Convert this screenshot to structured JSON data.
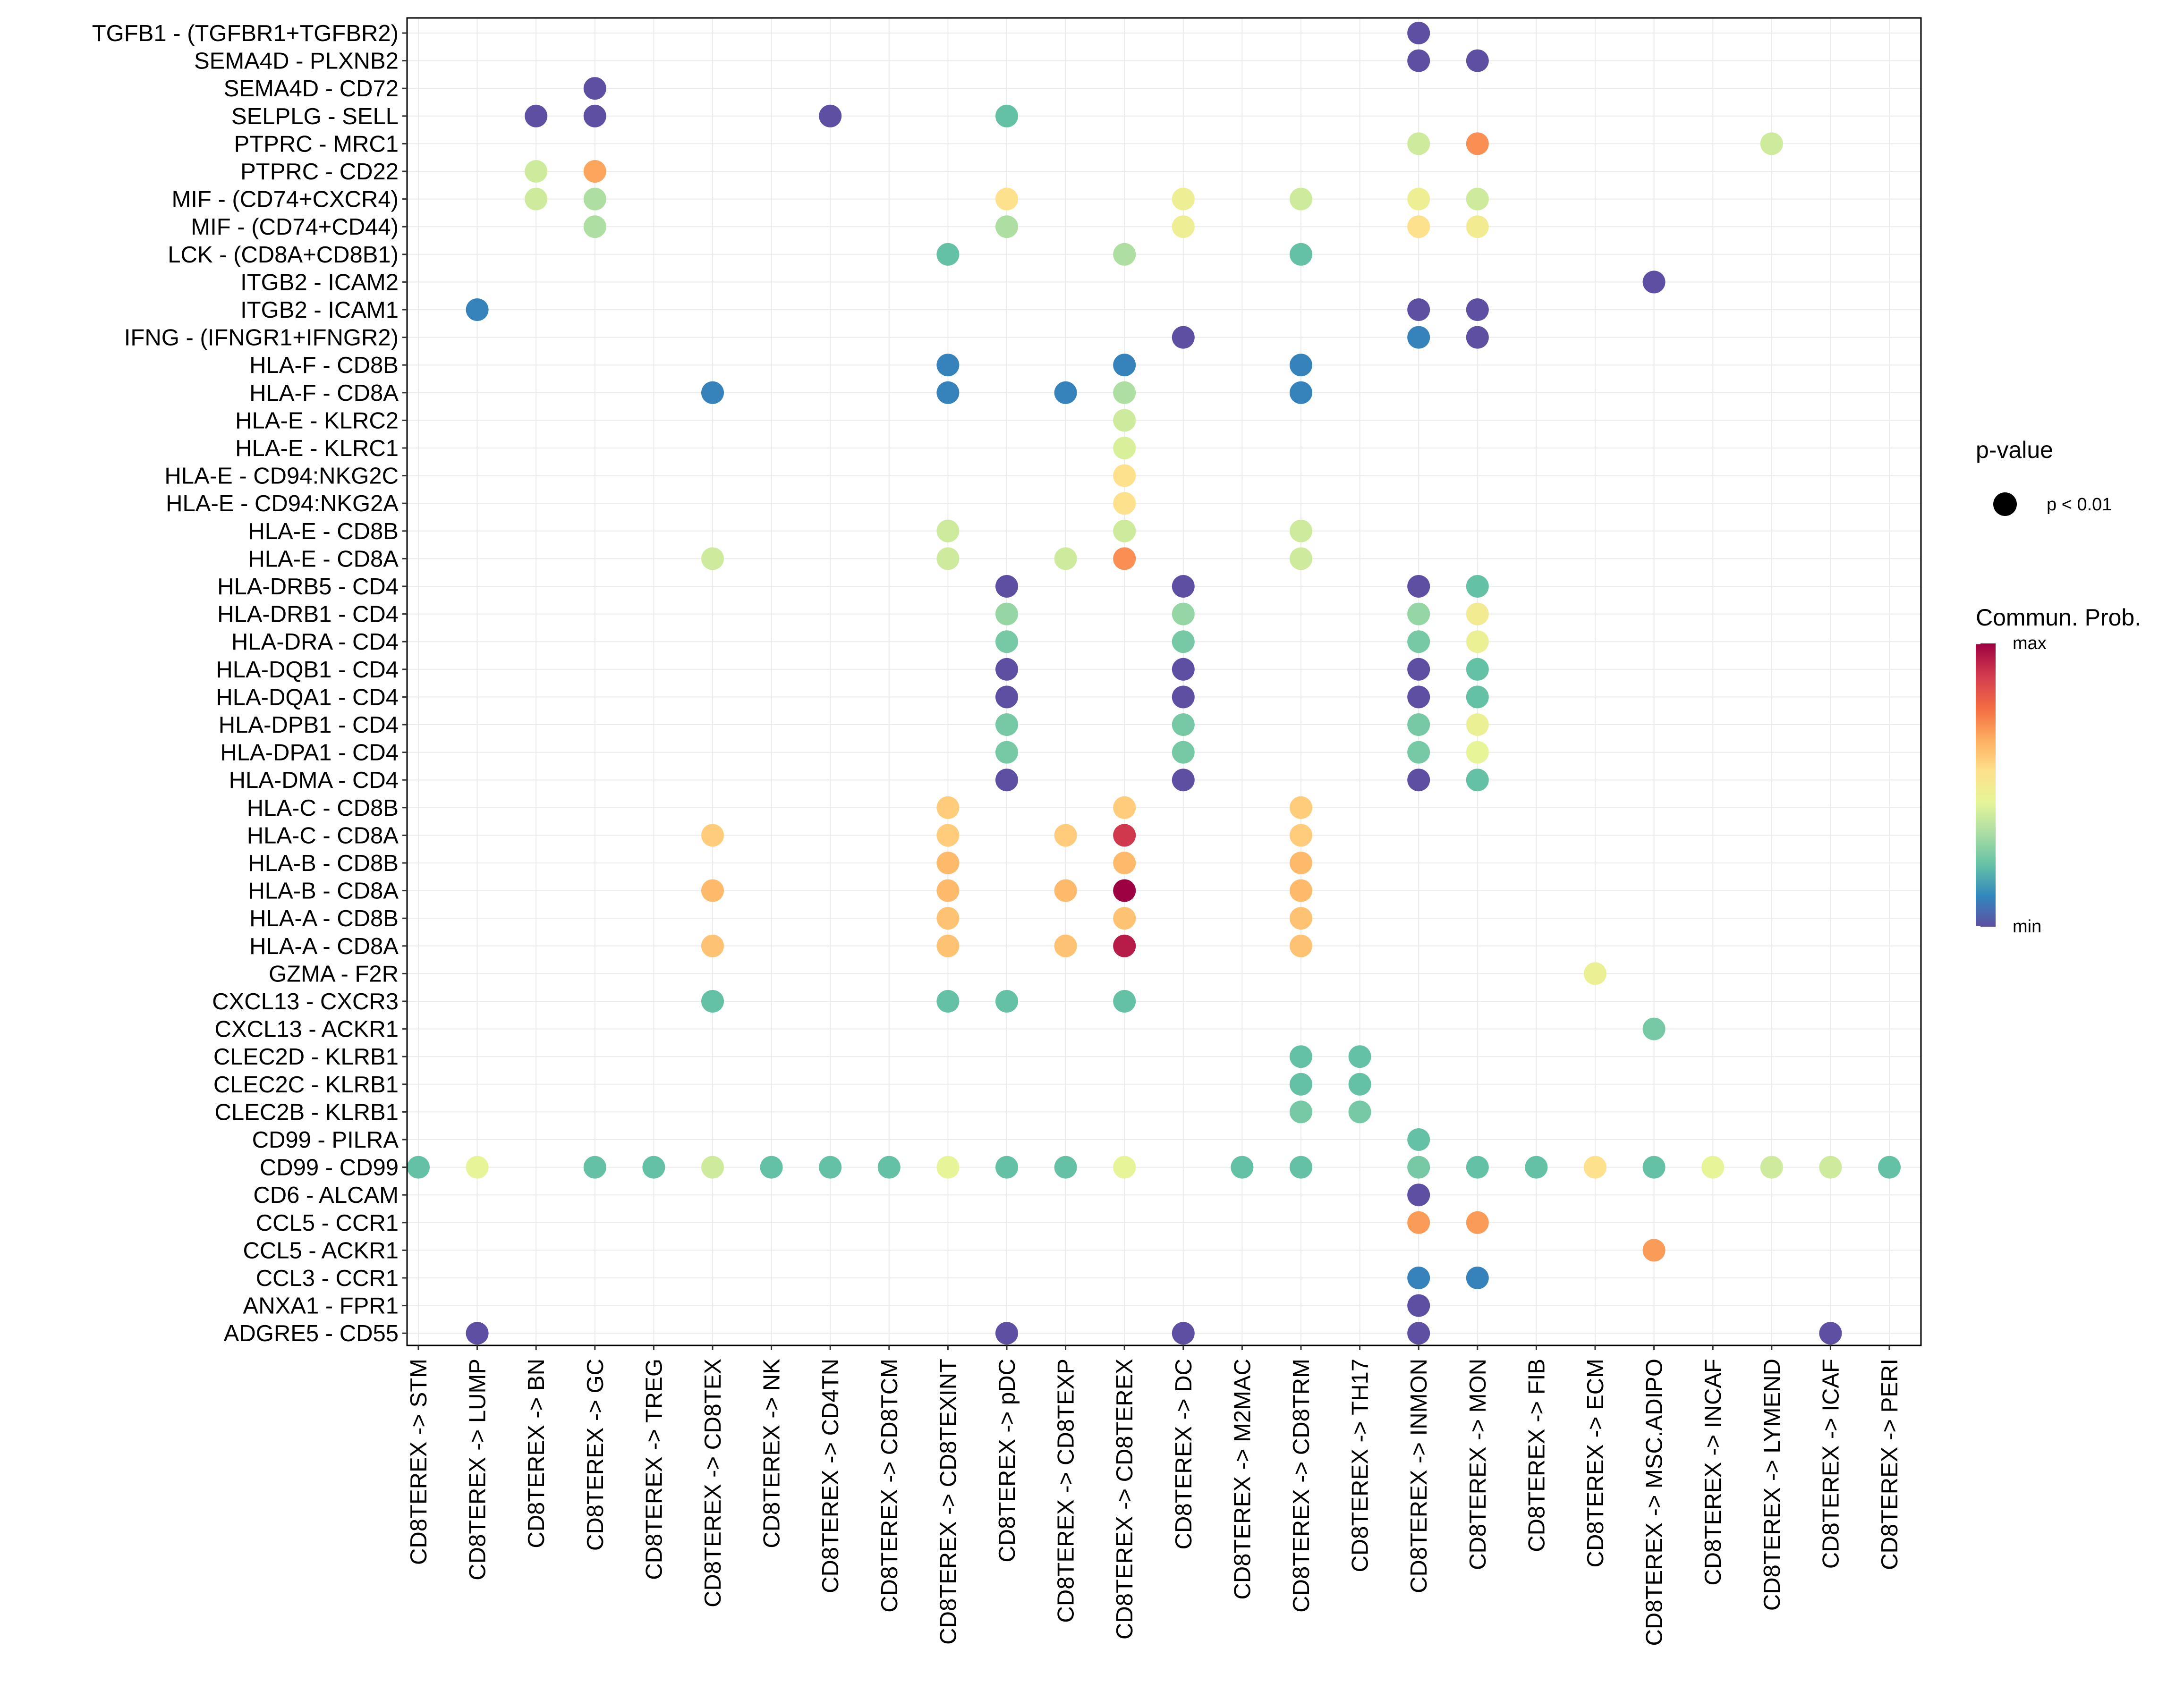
{
  "chart_data": {
    "type": "dotplot",
    "title": "",
    "xlabel": "",
    "ylabel": "",
    "grid": true,
    "colorscale": [
      "#5E4FA2",
      "#3288BD",
      "#66C2A5",
      "#ABDDA4",
      "#E6F598",
      "#FEE08B",
      "#FDAE61",
      "#F46D43",
      "#D53E4F",
      "#9E0142"
    ],
    "columns": [
      "CD8TEREX -> STM",
      "CD8TEREX -> LUMP",
      "CD8TEREX -> BN",
      "CD8TEREX -> GC",
      "CD8TEREX -> TREG",
      "CD8TEREX -> CD8TEX",
      "CD8TEREX -> NK",
      "CD8TEREX -> CD4TN",
      "CD8TEREX -> CD8TCM",
      "CD8TEREX -> CD8TEXINT",
      "CD8TEREX -> pDC",
      "CD8TEREX -> CD8TEXP",
      "CD8TEREX -> CD8TEREX",
      "CD8TEREX -> DC",
      "CD8TEREX -> M2MAC",
      "CD8TEREX -> CD8TRM",
      "CD8TEREX -> TH17",
      "CD8TEREX -> INMON",
      "CD8TEREX -> MON",
      "CD8TEREX -> FIB",
      "CD8TEREX -> ECM",
      "CD8TEREX -> MSC.ADIPO",
      "CD8TEREX -> INCAF",
      "CD8TEREX -> LYMEND",
      "CD8TEREX -> ICAF",
      "CD8TEREX -> PERI"
    ],
    "rows": [
      "TGFB1 - (TGFBR1+TGFBR2)",
      "SEMA4D - PLXNB2",
      "SEMA4D - CD72",
      "SELPLG - SELL",
      "PTPRC - MRC1",
      "PTPRC - CD22",
      "MIF - (CD74+CXCR4)",
      "MIF - (CD74+CD44)",
      "LCK - (CD8A+CD8B1)",
      "ITGB2 - ICAM2",
      "ITGB2 - ICAM1",
      "IFNG - (IFNGR1+IFNGR2)",
      "HLA-F - CD8B",
      "HLA-F - CD8A",
      "HLA-E - KLRC2",
      "HLA-E - KLRC1",
      "HLA-E - CD94:NKG2C",
      "HLA-E - CD94:NKG2A",
      "HLA-E - CD8B",
      "HLA-E - CD8A",
      "HLA-DRB5 - CD4",
      "HLA-DRB1 - CD4",
      "HLA-DRA - CD4",
      "HLA-DQB1 - CD4",
      "HLA-DQA1 - CD4",
      "HLA-DPB1 - CD4",
      "HLA-DPA1 - CD4",
      "HLA-DMA - CD4",
      "HLA-C - CD8B",
      "HLA-C - CD8A",
      "HLA-B - CD8B",
      "HLA-B - CD8A",
      "HLA-A - CD8B",
      "HLA-A - CD8A",
      "GZMA - F2R",
      "CXCL13 - CXCR3",
      "CXCL13 - ACKR1",
      "CLEC2D - KLRB1",
      "CLEC2C - KLRB1",
      "CLEC2B - KLRB1",
      "CD99 - PILRA",
      "CD99 - CD99",
      "CD6 - ALCAM",
      "CCL5 - CCR1",
      "CCL5 - ACKR1",
      "CCL3 - CCR1",
      "ANXA1 - FPR1",
      "ADGRE5 - CD55"
    ],
    "points_note": "each point: [row_index, column_index, relative communication probability 0(min)..1(max)]; all points p < 0.01",
    "points": [
      [
        0,
        17,
        0.0
      ],
      [
        1,
        17,
        0.0
      ],
      [
        1,
        18,
        0.0
      ],
      [
        2,
        3,
        0.0
      ],
      [
        3,
        2,
        0.0
      ],
      [
        3,
        3,
        0.0
      ],
      [
        3,
        7,
        0.0
      ],
      [
        3,
        10,
        0.22
      ],
      [
        4,
        17,
        0.4
      ],
      [
        4,
        18,
        0.72
      ],
      [
        4,
        23,
        0.4
      ],
      [
        5,
        2,
        0.4
      ],
      [
        5,
        3,
        0.68
      ],
      [
        6,
        2,
        0.4
      ],
      [
        6,
        3,
        0.34
      ],
      [
        6,
        10,
        0.55
      ],
      [
        6,
        13,
        0.48
      ],
      [
        6,
        15,
        0.4
      ],
      [
        6,
        17,
        0.48
      ],
      [
        6,
        18,
        0.4
      ],
      [
        7,
        3,
        0.34
      ],
      [
        7,
        10,
        0.34
      ],
      [
        7,
        13,
        0.48
      ],
      [
        7,
        17,
        0.55
      ],
      [
        7,
        18,
        0.5
      ],
      [
        8,
        9,
        0.22
      ],
      [
        8,
        12,
        0.34
      ],
      [
        8,
        15,
        0.22
      ],
      [
        9,
        21,
        0.0
      ],
      [
        10,
        1,
        0.1
      ],
      [
        10,
        17,
        0.0
      ],
      [
        10,
        18,
        0.0
      ],
      [
        11,
        13,
        0.0
      ],
      [
        11,
        17,
        0.1
      ],
      [
        11,
        18,
        0.0
      ],
      [
        12,
        9,
        0.1
      ],
      [
        12,
        12,
        0.1
      ],
      [
        12,
        15,
        0.1
      ],
      [
        13,
        5,
        0.1
      ],
      [
        13,
        9,
        0.1
      ],
      [
        13,
        11,
        0.1
      ],
      [
        13,
        12,
        0.34
      ],
      [
        13,
        15,
        0.1
      ],
      [
        14,
        12,
        0.4
      ],
      [
        15,
        12,
        0.42
      ],
      [
        16,
        12,
        0.55
      ],
      [
        17,
        12,
        0.55
      ],
      [
        18,
        9,
        0.4
      ],
      [
        18,
        12,
        0.4
      ],
      [
        18,
        15,
        0.4
      ],
      [
        19,
        5,
        0.4
      ],
      [
        19,
        9,
        0.4
      ],
      [
        19,
        11,
        0.4
      ],
      [
        19,
        12,
        0.72
      ],
      [
        19,
        15,
        0.4
      ],
      [
        20,
        10,
        0.0
      ],
      [
        20,
        13,
        0.0
      ],
      [
        20,
        17,
        0.0
      ],
      [
        20,
        18,
        0.22
      ],
      [
        21,
        10,
        0.3
      ],
      [
        21,
        13,
        0.3
      ],
      [
        21,
        17,
        0.3
      ],
      [
        21,
        18,
        0.5
      ],
      [
        22,
        10,
        0.25
      ],
      [
        22,
        13,
        0.25
      ],
      [
        22,
        17,
        0.25
      ],
      [
        22,
        18,
        0.47
      ],
      [
        23,
        10,
        0.0
      ],
      [
        23,
        13,
        0.0
      ],
      [
        23,
        17,
        0.0
      ],
      [
        23,
        18,
        0.22
      ],
      [
        24,
        10,
        0.0
      ],
      [
        24,
        13,
        0.0
      ],
      [
        24,
        17,
        0.0
      ],
      [
        24,
        18,
        0.22
      ],
      [
        25,
        10,
        0.25
      ],
      [
        25,
        13,
        0.25
      ],
      [
        25,
        17,
        0.25
      ],
      [
        25,
        18,
        0.47
      ],
      [
        26,
        10,
        0.25
      ],
      [
        26,
        13,
        0.25
      ],
      [
        26,
        17,
        0.25
      ],
      [
        26,
        18,
        0.45
      ],
      [
        27,
        10,
        0.0
      ],
      [
        27,
        13,
        0.0
      ],
      [
        27,
        17,
        0.0
      ],
      [
        27,
        18,
        0.22
      ],
      [
        28,
        9,
        0.6
      ],
      [
        28,
        12,
        0.6
      ],
      [
        28,
        15,
        0.6
      ],
      [
        29,
        5,
        0.6
      ],
      [
        29,
        9,
        0.6
      ],
      [
        29,
        11,
        0.6
      ],
      [
        29,
        12,
        0.9
      ],
      [
        29,
        15,
        0.6
      ],
      [
        30,
        9,
        0.64
      ],
      [
        30,
        12,
        0.64
      ],
      [
        30,
        15,
        0.64
      ],
      [
        31,
        5,
        0.64
      ],
      [
        31,
        9,
        0.64
      ],
      [
        31,
        11,
        0.64
      ],
      [
        31,
        12,
        1.0
      ],
      [
        31,
        15,
        0.64
      ],
      [
        32,
        9,
        0.62
      ],
      [
        32,
        12,
        0.62
      ],
      [
        32,
        15,
        0.62
      ],
      [
        33,
        5,
        0.62
      ],
      [
        33,
        9,
        0.62
      ],
      [
        33,
        11,
        0.62
      ],
      [
        33,
        12,
        0.95
      ],
      [
        33,
        15,
        0.62
      ],
      [
        34,
        20,
        0.47
      ],
      [
        35,
        5,
        0.22
      ],
      [
        35,
        9,
        0.22
      ],
      [
        35,
        10,
        0.22
      ],
      [
        35,
        12,
        0.22
      ],
      [
        36,
        21,
        0.25
      ],
      [
        37,
        15,
        0.22
      ],
      [
        37,
        16,
        0.22
      ],
      [
        38,
        15,
        0.22
      ],
      [
        38,
        16,
        0.22
      ],
      [
        39,
        15,
        0.25
      ],
      [
        39,
        16,
        0.25
      ],
      [
        40,
        17,
        0.22
      ],
      [
        41,
        0,
        0.22
      ],
      [
        41,
        1,
        0.45
      ],
      [
        41,
        3,
        0.22
      ],
      [
        41,
        4,
        0.22
      ],
      [
        41,
        5,
        0.4
      ],
      [
        41,
        6,
        0.22
      ],
      [
        41,
        7,
        0.22
      ],
      [
        41,
        8,
        0.22
      ],
      [
        41,
        9,
        0.45
      ],
      [
        41,
        10,
        0.22
      ],
      [
        41,
        11,
        0.22
      ],
      [
        41,
        12,
        0.45
      ],
      [
        41,
        14,
        0.22
      ],
      [
        41,
        15,
        0.22
      ],
      [
        41,
        17,
        0.25
      ],
      [
        41,
        18,
        0.22
      ],
      [
        41,
        19,
        0.22
      ],
      [
        41,
        20,
        0.55
      ],
      [
        41,
        21,
        0.22
      ],
      [
        41,
        22,
        0.45
      ],
      [
        41,
        23,
        0.4
      ],
      [
        41,
        24,
        0.4
      ],
      [
        41,
        25,
        0.22
      ],
      [
        42,
        17,
        0.0
      ],
      [
        43,
        17,
        0.7
      ],
      [
        43,
        18,
        0.7
      ],
      [
        44,
        21,
        0.7
      ],
      [
        45,
        17,
        0.1
      ],
      [
        45,
        18,
        0.1
      ],
      [
        46,
        17,
        0.0
      ],
      [
        47,
        1,
        0.0
      ],
      [
        47,
        10,
        0.0
      ],
      [
        47,
        13,
        0.0
      ],
      [
        47,
        17,
        0.0
      ],
      [
        47,
        24,
        0.0
      ]
    ],
    "legend": {
      "pvalue_title": "p-value",
      "pvalue_label": "p < 0.01",
      "prob_title": "Commun. Prob.",
      "max_label": "max",
      "min_label": "min"
    }
  }
}
